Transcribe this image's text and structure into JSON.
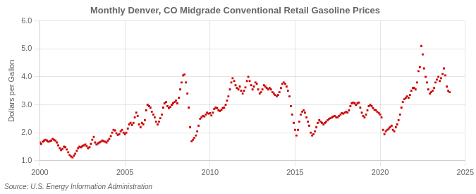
{
  "chart_data": {
    "type": "scatter",
    "title": "Monthly Denver, CO Midgrade Conventional Retail Gasoline Prices",
    "ylabel": "Dollars per Gallon",
    "annotations": [
      "Source: U.S. Energy Information Administration"
    ],
    "color": "#CC0000",
    "marker": "square",
    "grid": true,
    "xlim": [
      2000,
      2025
    ],
    "ylim": [
      1.0,
      6.0
    ],
    "xticks": [
      2000,
      2005,
      2010,
      2015,
      2020,
      2025
    ],
    "yticks": [
      {
        "value": 1.0,
        "label": "1.0"
      },
      {
        "value": 2.0,
        "label": "2.0"
      },
      {
        "value": 3.0,
        "label": "3.0"
      },
      {
        "value": 4.0,
        "label": "4.0"
      },
      {
        "value": 5.0,
        "label": "5.0"
      },
      {
        "value": 6.0,
        "label": "6.0"
      }
    ],
    "x": [
      2000.0,
      2000.08,
      2000.17,
      2000.25,
      2000.33,
      2000.42,
      2000.5,
      2000.58,
      2000.67,
      2000.75,
      2000.83,
      2000.92,
      2001.0,
      2001.08,
      2001.17,
      2001.25,
      2001.33,
      2001.42,
      2001.5,
      2001.58,
      2001.67,
      2001.75,
      2001.83,
      2001.92,
      2002.0,
      2002.08,
      2002.17,
      2002.25,
      2002.33,
      2002.42,
      2002.5,
      2002.58,
      2002.67,
      2002.75,
      2002.83,
      2002.92,
      2003.0,
      2003.08,
      2003.17,
      2003.25,
      2003.33,
      2003.42,
      2003.5,
      2003.58,
      2003.67,
      2003.75,
      2003.83,
      2003.92,
      2004.0,
      2004.08,
      2004.17,
      2004.25,
      2004.33,
      2004.42,
      2004.5,
      2004.58,
      2004.67,
      2004.75,
      2004.83,
      2004.92,
      2005.0,
      2005.08,
      2005.17,
      2005.25,
      2005.33,
      2005.42,
      2005.5,
      2005.58,
      2005.67,
      2005.75,
      2005.83,
      2005.92,
      2006.0,
      2006.08,
      2006.17,
      2006.25,
      2006.33,
      2006.42,
      2006.5,
      2006.58,
      2006.67,
      2006.75,
      2006.83,
      2006.92,
      2007.0,
      2007.08,
      2007.17,
      2007.25,
      2007.33,
      2007.42,
      2007.5,
      2007.58,
      2007.67,
      2007.75,
      2007.83,
      2007.92,
      2008.0,
      2008.08,
      2008.17,
      2008.25,
      2008.33,
      2008.42,
      2008.5,
      2008.58,
      2008.67,
      2008.75,
      2008.83,
      2008.92,
      2009.0,
      2009.08,
      2009.17,
      2009.25,
      2009.33,
      2009.42,
      2009.5,
      2009.58,
      2009.67,
      2009.75,
      2009.83,
      2009.92,
      2010.0,
      2010.08,
      2010.17,
      2010.25,
      2010.33,
      2010.42,
      2010.5,
      2010.58,
      2010.67,
      2010.75,
      2010.83,
      2010.92,
      2011.0,
      2011.08,
      2011.17,
      2011.25,
      2011.33,
      2011.42,
      2011.5,
      2011.58,
      2011.67,
      2011.75,
      2011.83,
      2011.92,
      2012.0,
      2012.08,
      2012.17,
      2012.25,
      2012.33,
      2012.42,
      2012.5,
      2012.58,
      2012.67,
      2012.75,
      2012.83,
      2012.92,
      2013.0,
      2013.08,
      2013.17,
      2013.25,
      2013.33,
      2013.42,
      2013.5,
      2013.58,
      2013.67,
      2013.75,
      2013.83,
      2013.92,
      2014.0,
      2014.08,
      2014.17,
      2014.25,
      2014.33,
      2014.42,
      2014.5,
      2014.58,
      2014.67,
      2014.75,
      2014.83,
      2014.92,
      2015.0,
      2015.08,
      2015.17,
      2015.25,
      2015.33,
      2015.42,
      2015.5,
      2015.58,
      2015.67,
      2015.75,
      2015.83,
      2015.92,
      2016.0,
      2016.08,
      2016.17,
      2016.25,
      2016.33,
      2016.42,
      2016.5,
      2016.58,
      2016.67,
      2016.75,
      2016.83,
      2016.92,
      2017.0,
      2017.08,
      2017.17,
      2017.25,
      2017.33,
      2017.42,
      2017.5,
      2017.58,
      2017.67,
      2017.75,
      2017.83,
      2017.92,
      2018.0,
      2018.08,
      2018.17,
      2018.25,
      2018.33,
      2018.42,
      2018.5,
      2018.58,
      2018.67,
      2018.75,
      2018.83,
      2018.92,
      2019.0,
      2019.08,
      2019.17,
      2019.25,
      2019.33,
      2019.42,
      2019.5,
      2019.58,
      2019.67,
      2019.75,
      2019.83,
      2019.92,
      2020.0,
      2020.08,
      2020.17,
      2020.25,
      2020.33,
      2020.42,
      2020.5,
      2020.58,
      2020.67,
      2020.75,
      2020.83,
      2020.92,
      2021.0,
      2021.08,
      2021.17,
      2021.25,
      2021.33,
      2021.42,
      2021.5,
      2021.58,
      2021.67,
      2021.75,
      2021.83,
      2021.92,
      2022.0,
      2022.08,
      2022.17,
      2022.25,
      2022.33,
      2022.42,
      2022.5,
      2022.58,
      2022.67,
      2022.75,
      2022.83,
      2022.92,
      2023.0,
      2023.08,
      2023.17,
      2023.25,
      2023.33,
      2023.42,
      2023.5,
      2023.58,
      2023.67,
      2023.75,
      2023.83,
      2023.92,
      2024.0,
      2024.08
    ],
    "values": [
      1.65,
      1.6,
      1.68,
      1.72,
      1.75,
      1.72,
      1.68,
      1.7,
      1.72,
      1.78,
      1.75,
      1.72,
      1.65,
      1.55,
      1.45,
      1.38,
      1.42,
      1.5,
      1.48,
      1.4,
      1.3,
      1.2,
      1.15,
      1.12,
      1.18,
      1.25,
      1.35,
      1.45,
      1.5,
      1.48,
      1.52,
      1.55,
      1.58,
      1.52,
      1.45,
      1.48,
      1.6,
      1.75,
      1.85,
      1.65,
      1.58,
      1.62,
      1.65,
      1.68,
      1.72,
      1.7,
      1.68,
      1.65,
      1.72,
      1.78,
      1.88,
      2.0,
      2.1,
      2.08,
      1.98,
      1.92,
      1.95,
      2.05,
      2.1,
      2.0,
      1.95,
      2.0,
      2.15,
      2.3,
      2.35,
      2.28,
      2.35,
      2.55,
      2.72,
      2.6,
      2.3,
      2.2,
      2.35,
      2.3,
      2.45,
      2.8,
      3.0,
      2.95,
      2.9,
      2.75,
      2.65,
      2.55,
      2.4,
      2.3,
      2.4,
      2.52,
      2.65,
      2.9,
      3.05,
      3.1,
      2.95,
      2.88,
      2.92,
      3.0,
      3.05,
      3.1,
      3.15,
      3.05,
      3.25,
      3.55,
      3.8,
      4.05,
      4.08,
      3.8,
      3.4,
      2.9,
      2.2,
      1.7,
      1.75,
      1.82,
      1.9,
      2.05,
      2.25,
      2.5,
      2.55,
      2.6,
      2.58,
      2.65,
      2.72,
      2.68,
      2.7,
      2.62,
      2.72,
      2.85,
      2.9,
      2.88,
      2.8,
      2.78,
      2.82,
      2.88,
      2.9,
      3.0,
      3.15,
      3.3,
      3.55,
      3.8,
      3.95,
      3.85,
      3.7,
      3.6,
      3.55,
      3.65,
      3.5,
      3.4,
      3.5,
      3.62,
      3.85,
      4.0,
      3.85,
      3.7,
      3.55,
      3.65,
      3.8,
      3.75,
      3.55,
      3.4,
      3.45,
      3.55,
      3.7,
      3.65,
      3.6,
      3.55,
      3.6,
      3.55,
      3.45,
      3.4,
      3.35,
      3.3,
      3.35,
      3.45,
      3.6,
      3.75,
      3.8,
      3.75,
      3.65,
      3.5,
      3.3,
      2.95,
      2.65,
      2.35,
      2.1,
      1.9,
      2.1,
      2.4,
      2.65,
      2.75,
      2.8,
      2.72,
      2.55,
      2.4,
      2.25,
      2.0,
      1.9,
      1.95,
      2.05,
      2.2,
      2.35,
      2.45,
      2.4,
      2.35,
      2.3,
      2.35,
      2.4,
      2.45,
      2.5,
      2.52,
      2.55,
      2.58,
      2.6,
      2.55,
      2.55,
      2.6,
      2.65,
      2.7,
      2.68,
      2.72,
      2.75,
      2.72,
      2.8,
      2.95,
      3.05,
      3.08,
      3.05,
      3.0,
      3.05,
      3.08,
      2.9,
      2.72,
      2.6,
      2.55,
      2.65,
      2.8,
      2.95,
      3.0,
      2.95,
      2.88,
      2.82,
      2.8,
      2.75,
      2.7,
      2.65,
      2.55,
      2.1,
      1.95,
      2.05,
      2.1,
      2.15,
      2.2,
      2.25,
      2.1,
      2.05,
      2.2,
      2.3,
      2.45,
      2.65,
      2.9,
      3.1,
      3.2,
      3.25,
      3.3,
      3.25,
      3.35,
      3.5,
      3.6,
      3.6,
      3.55,
      3.8,
      4.2,
      4.35,
      5.1,
      4.8,
      4.3,
      4.0,
      3.8,
      3.55,
      3.4,
      3.45,
      3.5,
      3.6,
      3.8,
      3.9,
      4.0,
      3.85,
      3.95,
      4.1,
      4.3,
      4.05,
      3.65,
      3.5,
      3.45
    ]
  }
}
